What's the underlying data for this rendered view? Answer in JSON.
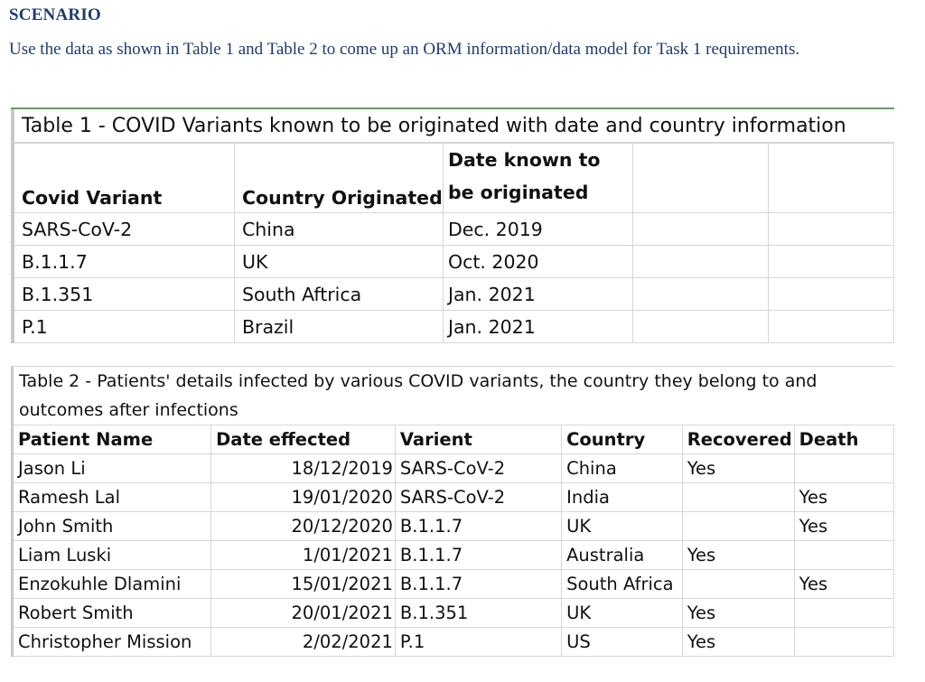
{
  "heading": "SCENARIO",
  "intro": "Use the data as shown in Table 1 and Table 2 to come up an ORM information/data model for Task 1 requirements.",
  "table1": {
    "title": "Table 1 - COVID Variants known to be originated with date and country information",
    "headers": [
      "Covid Variant",
      "Country Originated",
      "Date known to",
      "be originated"
    ],
    "rows": [
      [
        "SARS-CoV-2",
        "China",
        "Dec. 2019"
      ],
      [
        "B.1.1.7",
        "UK",
        "Oct. 2020"
      ],
      [
        "B.1.351",
        "South Aftrica",
        "Jan. 2021"
      ],
      [
        "P.1",
        "Brazil",
        "Jan. 2021"
      ]
    ]
  },
  "table2": {
    "title_line1": "Table 2 - Patients' details  infected by various COVID variants, the country they belong to and",
    "title_line2": "outcomes after infections",
    "headers": [
      "Patient Name",
      "Date effected",
      "Varient",
      "Country",
      "Recovered",
      "Death"
    ],
    "rows": [
      [
        "Jason Li",
        "18/12/2019",
        "SARS-CoV-2",
        "China",
        "Yes",
        ""
      ],
      [
        "Ramesh Lal",
        "19/01/2020",
        "SARS-CoV-2",
        "India",
        "",
        "Yes"
      ],
      [
        "John Smith",
        "20/12/2020",
        "B.1.1.7",
        "UK",
        "",
        "Yes"
      ],
      [
        "Liam Luski",
        "1/01/2021",
        "B.1.1.7",
        "Australia",
        "Yes",
        ""
      ],
      [
        "Enzokuhle Dlamini",
        "15/01/2021",
        "B.1.1.7",
        "South Africa",
        "",
        "Yes"
      ],
      [
        "Robert Smith",
        "20/01/2021",
        "B.1.351",
        "UK",
        "Yes",
        ""
      ],
      [
        "Christopher Mission",
        "2/02/2021",
        "P.1",
        "US",
        "Yes",
        ""
      ]
    ]
  }
}
